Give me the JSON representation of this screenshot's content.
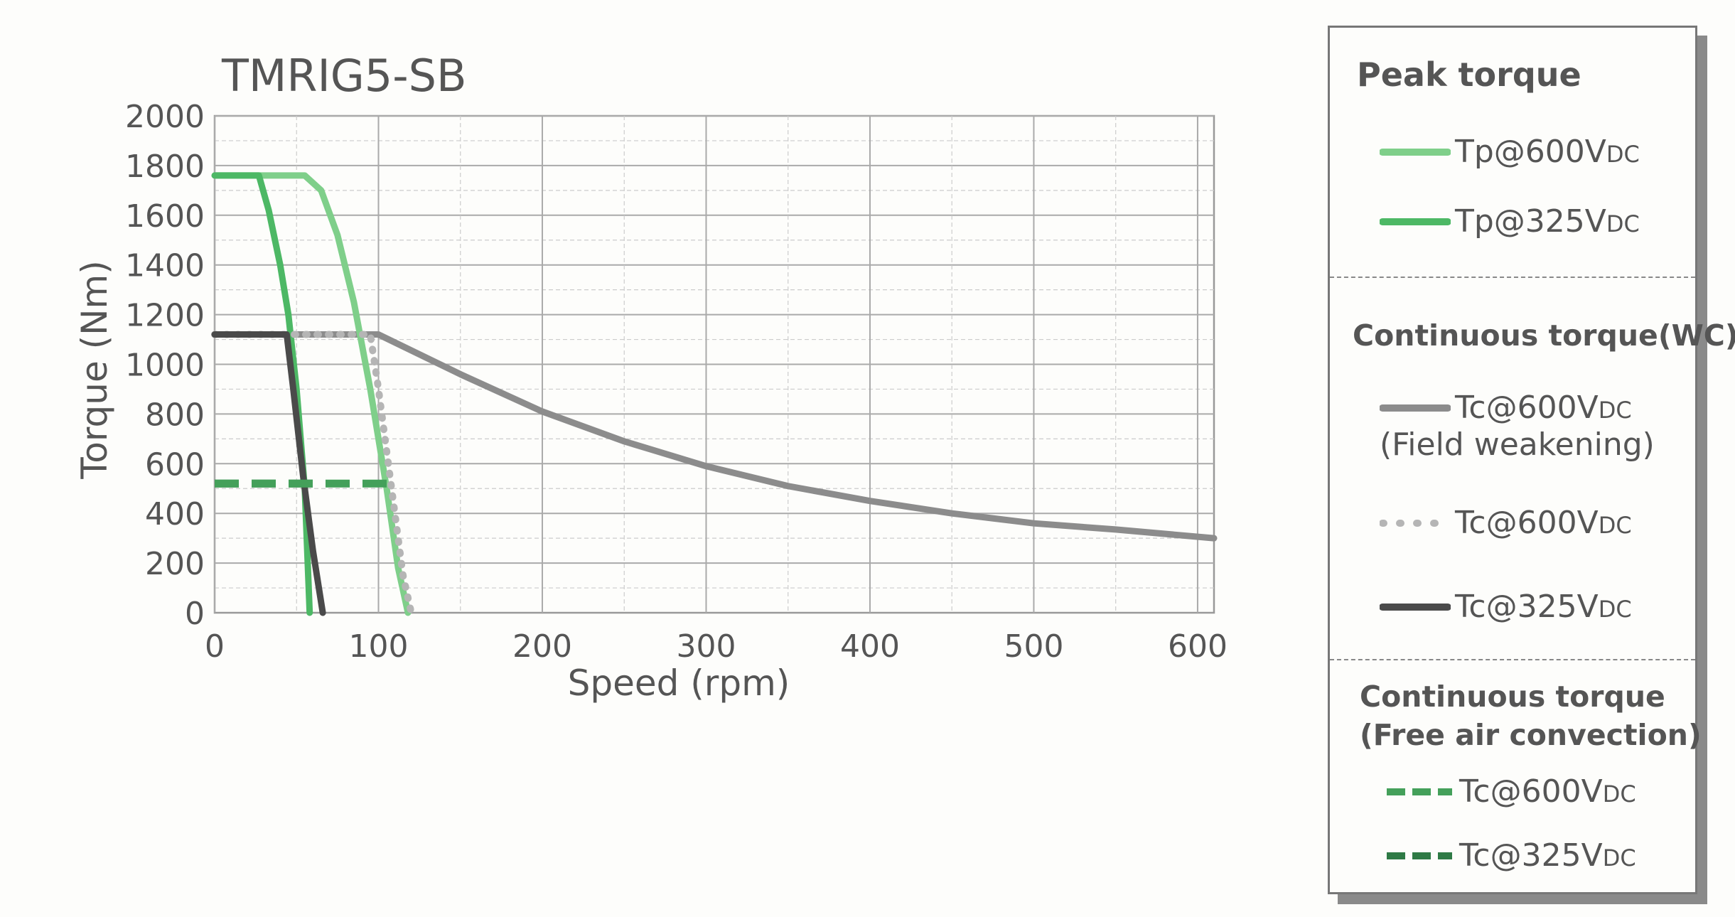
{
  "chart_data": {
    "type": "line",
    "title": "TMRIG5-SB",
    "xlabel": "Speed (rpm)",
    "ylabel": "Torque (Nm)",
    "xlim": [
      0,
      610
    ],
    "ylim": [
      0,
      2000
    ],
    "xticks": [
      "0",
      "100",
      "200",
      "300",
      "400",
      "500",
      "600"
    ],
    "yticks": [
      "0",
      "200",
      "400",
      "600",
      "800",
      "1000",
      "1200",
      "1400",
      "1600",
      "1800",
      "2000"
    ],
    "grid": true,
    "legend_position": "right",
    "series": [
      {
        "name": "Tp@600VDC",
        "group": "peak",
        "color": "#7fcf8a",
        "style": "solid",
        "x": [
          0,
          55,
          65,
          75,
          85,
          95,
          105,
          112,
          118
        ],
        "y": [
          1760,
          1760,
          1700,
          1520,
          1250,
          900,
          500,
          180,
          0
        ]
      },
      {
        "name": "Tp@325VDC",
        "group": "peak",
        "color": "#4db865",
        "style": "solid",
        "x": [
          0,
          27,
          33,
          40,
          45,
          50,
          55,
          58
        ],
        "y": [
          1760,
          1760,
          1620,
          1400,
          1200,
          900,
          500,
          0
        ]
      },
      {
        "name": "Tc@600VDC (Field weakening)",
        "group": "wc",
        "color": "#8c8c8c",
        "style": "solid",
        "x": [
          0,
          100,
          150,
          200,
          250,
          300,
          350,
          400,
          450,
          500,
          550,
          610
        ],
        "y": [
          1120,
          1120,
          960,
          810,
          690,
          590,
          510,
          450,
          400,
          360,
          335,
          300
        ]
      },
      {
        "name": "Tc@600VDC",
        "group": "wc",
        "color": "#b5b5b5",
        "style": "dotted",
        "x": [
          0,
          95,
          100,
          105,
          110,
          115,
          120
        ],
        "y": [
          1120,
          1120,
          900,
          650,
          400,
          150,
          0
        ]
      },
      {
        "name": "Tc@325VDC",
        "group": "wc",
        "color": "#4a4a4a",
        "style": "solid",
        "x": [
          0,
          44,
          48,
          54,
          60,
          66
        ],
        "y": [
          1120,
          1120,
          900,
          550,
          250,
          0
        ]
      },
      {
        "name": "Tc@600VDC",
        "group": "free",
        "color": "#44a05a",
        "style": "dashed",
        "x": [
          0,
          112
        ],
        "y": [
          520,
          520
        ]
      },
      {
        "name": "Tc@325VDC",
        "group": "free",
        "color": "#2e7a45",
        "style": "dashed",
        "x": [
          0,
          60
        ],
        "y": [
          520,
          520
        ]
      }
    ]
  },
  "legend": {
    "peak_heading": "Peak torque",
    "wc_heading": "Continuous torque(WC)",
    "free_heading_line1": "Continuous torque",
    "free_heading_line2": "(Free air convection)",
    "entries": [
      {
        "main": "Tp@600V",
        "sub": "DC",
        "color": "#7fcf8a",
        "style": "solid"
      },
      {
        "main": "Tp@325V",
        "sub": "DC",
        "color": "#4db865",
        "style": "solid"
      },
      {
        "main": "Tc@600V",
        "sub": "DC",
        "extra": "(Field weakening)",
        "color": "#8c8c8c",
        "style": "solid"
      },
      {
        "main": "Tc@600V",
        "sub": "DC",
        "color": "#b5b5b5",
        "style": "dotted"
      },
      {
        "main": "Tc@325V",
        "sub": "DC",
        "color": "#4a4a4a",
        "style": "solid"
      },
      {
        "main": "Tc@600V",
        "sub": "DC",
        "color": "#44a05a",
        "style": "dashed"
      },
      {
        "main": "Tc@325V",
        "sub": "DC",
        "color": "#2e7a45",
        "style": "dashed"
      }
    ]
  }
}
